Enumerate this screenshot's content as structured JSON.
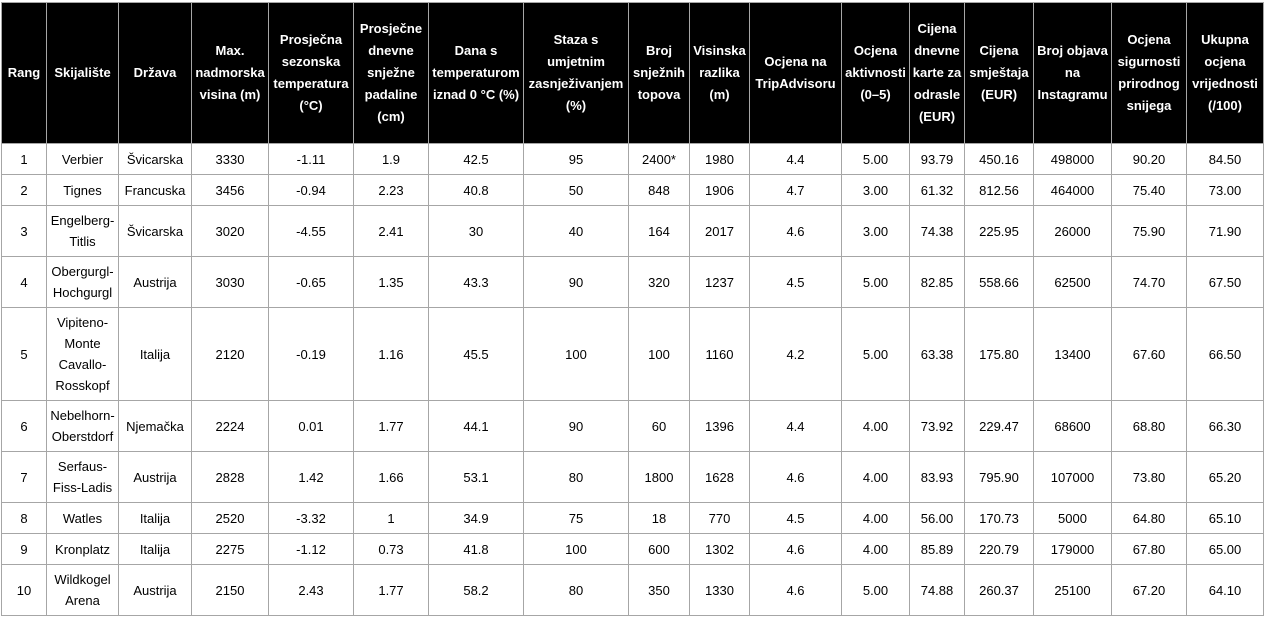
{
  "colors": {
    "header_bg": "#000000",
    "header_text": "#ffffff",
    "body_text": "#000000",
    "border": "#a6a6a6",
    "background": "#ffffff"
  },
  "chart_data": {
    "type": "table",
    "columns": [
      "Rang",
      "Skijalište",
      "Država",
      "Max. nadmorska visina (m)",
      "Prosječna sezonska temperatura (°C)",
      "Prosječne dnevne snježne padaline (cm)",
      "Dana s temperaturom iznad 0 °C (%)",
      "Staza s umjetnim zasnježivanjem (%)",
      "Broj snježnih topova",
      "Visinska razlika (m)",
      "Ocjena na TripAdvisoru",
      "Ocjena aktivnosti (0–5)",
      "Cijena dnevne karte za odrasle (EUR)",
      "Cijena smještaja (EUR)",
      "Broj objava na Instagramu",
      "Ocjena sigurnosti prirodnog snijega",
      "Ukupna ocjena vrijednosti (/100)"
    ],
    "rows": [
      [
        "1",
        "Verbier",
        "Švicarska",
        "3330",
        "-1.11",
        "1.9",
        "42.5",
        "95",
        "2400*",
        "1980",
        "4.4",
        "5.00",
        "93.79",
        "450.16",
        "498000",
        "90.20",
        "84.50"
      ],
      [
        "2",
        "Tignes",
        "Francuska",
        "3456",
        "-0.94",
        "2.23",
        "40.8",
        "50",
        "848",
        "1906",
        "4.7",
        "3.00",
        "61.32",
        "812.56",
        "464000",
        "75.40",
        "73.00"
      ],
      [
        "3",
        "Engelberg-Titlis",
        "Švicarska",
        "3020",
        "-4.55",
        "2.41",
        "30",
        "40",
        "164",
        "2017",
        "4.6",
        "3.00",
        "74.38",
        "225.95",
        "26000",
        "75.90",
        "71.90"
      ],
      [
        "4",
        "Obergurgl-Hochgurgl",
        "Austrija",
        "3030",
        "-0.65",
        "1.35",
        "43.3",
        "90",
        "320",
        "1237",
        "4.5",
        "5.00",
        "82.85",
        "558.66",
        "62500",
        "74.70",
        "67.50"
      ],
      [
        "5",
        "Vipiteno-Monte Cavallo-Rosskopf",
        "Italija",
        "2120",
        "-0.19",
        "1.16",
        "45.5",
        "100",
        "100",
        "1160",
        "4.2",
        "5.00",
        "63.38",
        "175.80",
        "13400",
        "67.60",
        "66.50"
      ],
      [
        "6",
        "Nebelhorn-Oberstdorf",
        "Njemačka",
        "2224",
        "0.01",
        "1.77",
        "44.1",
        "90",
        "60",
        "1396",
        "4.4",
        "4.00",
        "73.92",
        "229.47",
        "68600",
        "68.80",
        "66.30"
      ],
      [
        "7",
        "Serfaus-Fiss-Ladis",
        "Austrija",
        "2828",
        "1.42",
        "1.66",
        "53.1",
        "80",
        "1800",
        "1628",
        "4.6",
        "4.00",
        "83.93",
        "795.90",
        "107000",
        "73.80",
        "65.20"
      ],
      [
        "8",
        "Watles",
        "Italija",
        "2520",
        "-3.32",
        "1",
        "34.9",
        "75",
        "18",
        "770",
        "4.5",
        "4.00",
        "56.00",
        "170.73",
        "5000",
        "64.80",
        "65.10"
      ],
      [
        "9",
        "Kronplatz",
        "Italija",
        "2275",
        "-1.12",
        "0.73",
        "41.8",
        "100",
        "600",
        "1302",
        "4.6",
        "4.00",
        "85.89",
        "220.79",
        "179000",
        "67.80",
        "65.00"
      ],
      [
        "10",
        "Wildkogel Arena",
        "Austrija",
        "2150",
        "2.43",
        "1.77",
        "58.2",
        "80",
        "350",
        "1330",
        "4.6",
        "5.00",
        "74.88",
        "260.37",
        "25100",
        "67.20",
        "64.10"
      ]
    ]
  }
}
